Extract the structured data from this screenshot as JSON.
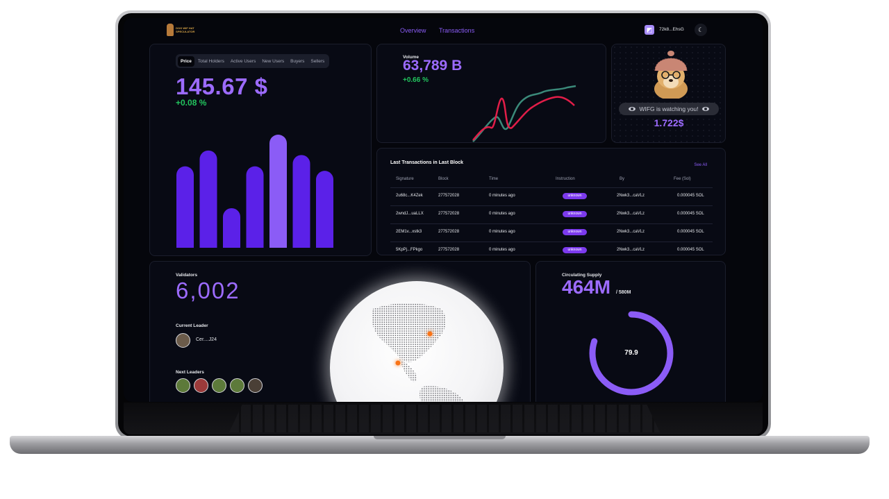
{
  "nav": {
    "logo_text": "DOG WIF HAT SPECULATOR",
    "links": [
      "Overview",
      "Transactions"
    ],
    "wallet": "72k8...EhsG",
    "theme_icon": "moon-icon"
  },
  "price_card": {
    "tabs": [
      "Price",
      "Total Holders",
      "Active Users",
      "New Users",
      "Buyers",
      "Sellers"
    ],
    "active_tab": "Price",
    "value": "145.67 $",
    "change": "+0.08 %",
    "bar_color": "#5b21e8",
    "bar_highlight_color": "#8b5cf6",
    "bar_levels": [
      0.72,
      0.86,
      0.35,
      0.72,
      1.0,
      0.82,
      0.68
    ],
    "highlight_index": 4
  },
  "volume_card": {
    "label": "Volume",
    "value": "63,789 B",
    "change": "+0.66 %",
    "line_colors": [
      "#e11d48",
      "#3b8a7a"
    ]
  },
  "mascot_card": {
    "watching_text": "WIFG is watching you!",
    "price": "1.722$"
  },
  "transactions": {
    "title": "Last Transactions in Last Block",
    "see_all": "See All",
    "columns": [
      "Signature",
      "Block",
      "Time",
      "Instruction",
      "By",
      "Fee (Sol)"
    ],
    "rows": [
      [
        "2u68c...K4Zek",
        "277572028",
        "0 minutes ago",
        "unknown",
        "2Nwk3...caVLz",
        "0.000045 SOL"
      ],
      [
        "2wndJ...uaLLX",
        "277572028",
        "0 minutes ago",
        "unknown",
        "2Nwk3...caVLz",
        "0.000045 SOL"
      ],
      [
        "2EM1v...xstk3",
        "277572028",
        "0 minutes ago",
        "unknown",
        "2Nwk3...caVLz",
        "0.000045 SOL"
      ],
      [
        "5KpPj...FPkgo",
        "277572028",
        "0 minutes ago",
        "unknown",
        "2Nwk3...caVLz",
        "0.000045 SOL"
      ]
    ]
  },
  "validators_card": {
    "label": "Validators",
    "value": "6,002",
    "current_leader_label": "Current Leader",
    "current_leader_name": "Cer....J24",
    "next_leaders_label": "Next Leaders",
    "marker_color": "#f97316"
  },
  "supply_card": {
    "label": "Circulating Supply",
    "value": "464M",
    "total": "/ 580M",
    "ring_value": "79.9",
    "ring_fraction": 0.799,
    "ring_color": "#8b5cf6"
  }
}
